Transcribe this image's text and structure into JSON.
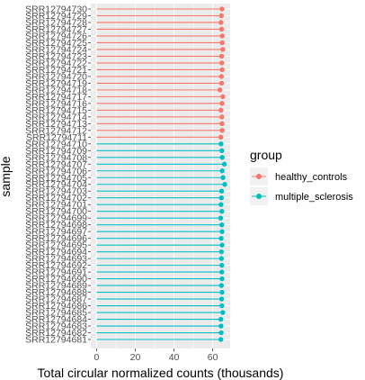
{
  "chart_data": {
    "type": "lollipop",
    "title": "",
    "xlabel": "Total circular normalized counts (thousands)",
    "ylabel": "sample",
    "xlim": [
      -3,
      69
    ],
    "xticks": [
      0,
      20,
      40,
      60
    ],
    "grid": true,
    "legend_title": "group",
    "legend_position": "right",
    "groups": [
      {
        "name": "healthy_controls",
        "color": "#F8766D"
      },
      {
        "name": "multiple_sclerosis",
        "color": "#00BFC4"
      }
    ],
    "samples": [
      "SRR12794730",
      "SRR12794729",
      "SRR12794728",
      "SRR12794727",
      "SRR12794726",
      "SRR12794725",
      "SRR12794724",
      "SRR12794723",
      "SRR12794722",
      "SRR12794721",
      "SRR12794720",
      "SRR12794719",
      "SRR12794718",
      "SRR12794717",
      "SRR12794716",
      "SRR12794715",
      "SRR12794714",
      "SRR12794713",
      "SRR12794712",
      "SRR12794711",
      "SRR12794710",
      "SRR12794709",
      "SRR12794708",
      "SRR12794707",
      "SRR12794706",
      "SRR12794705",
      "SRR12794704",
      "SRR12794703",
      "SRR12794702",
      "SRR12794701",
      "SRR12794700",
      "SRR12794699",
      "SRR12794698",
      "SRR12794697",
      "SRR12794696",
      "SRR12794695",
      "SRR12794694",
      "SRR12794693",
      "SRR12794692",
      "SRR12794691",
      "SRR12794690",
      "SRR12794689",
      "SRR12794688",
      "SRR12794687",
      "SRR12794686",
      "SRR12794685",
      "SRR12794684",
      "SRR12794683",
      "SRR12794682",
      "SRR12794681"
    ],
    "values": [
      64.8,
      64.5,
      64.3,
      64.6,
      64.9,
      64.9,
      65.2,
      64.6,
      64.7,
      64.9,
      64.5,
      64.6,
      63.7,
      65.2,
      64.8,
      64.3,
      64.7,
      64.8,
      64.9,
      64.2,
      64.3,
      64.7,
      64.9,
      66.0,
      64.9,
      65.3,
      66.2,
      64.6,
      64.5,
      64.3,
      64.7,
      64.1,
      64.7,
      64.8,
      64.4,
      64.8,
      64.5,
      64.5,
      64.7,
      64.7,
      64.8,
      64.5,
      64.8,
      64.6,
      64.7,
      65.2,
      64.2,
      64.3,
      64.4,
      64.2
    ],
    "group_of_sample": [
      "healthy_controls",
      "healthy_controls",
      "healthy_controls",
      "healthy_controls",
      "healthy_controls",
      "healthy_controls",
      "healthy_controls",
      "healthy_controls",
      "healthy_controls",
      "healthy_controls",
      "healthy_controls",
      "healthy_controls",
      "healthy_controls",
      "healthy_controls",
      "healthy_controls",
      "healthy_controls",
      "healthy_controls",
      "healthy_controls",
      "healthy_controls",
      "healthy_controls",
      "multiple_sclerosis",
      "multiple_sclerosis",
      "multiple_sclerosis",
      "multiple_sclerosis",
      "multiple_sclerosis",
      "multiple_sclerosis",
      "multiple_sclerosis",
      "multiple_sclerosis",
      "multiple_sclerosis",
      "multiple_sclerosis",
      "multiple_sclerosis",
      "multiple_sclerosis",
      "multiple_sclerosis",
      "multiple_sclerosis",
      "multiple_sclerosis",
      "multiple_sclerosis",
      "multiple_sclerosis",
      "multiple_sclerosis",
      "multiple_sclerosis",
      "multiple_sclerosis",
      "multiple_sclerosis",
      "multiple_sclerosis",
      "multiple_sclerosis",
      "multiple_sclerosis",
      "multiple_sclerosis",
      "multiple_sclerosis",
      "multiple_sclerosis",
      "multiple_sclerosis",
      "multiple_sclerosis",
      "multiple_sclerosis"
    ]
  }
}
